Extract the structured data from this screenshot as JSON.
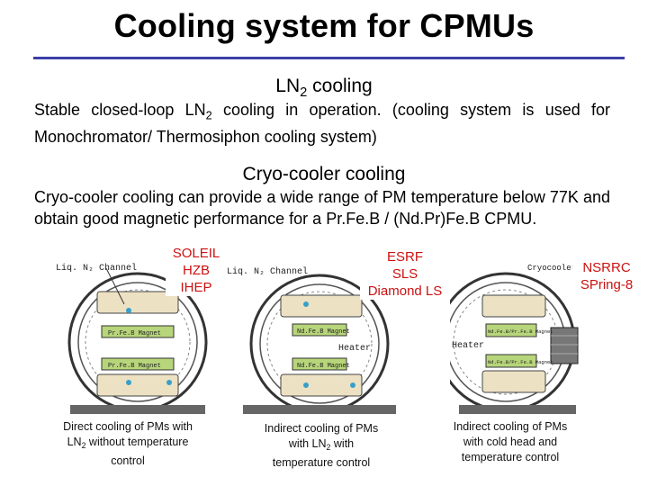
{
  "title": "Cooling system for CPMUs",
  "ln2": {
    "heading_pre": "LN",
    "heading_sub": "2",
    "heading_post": " cooling",
    "text_a": "Stable closed-loop LN",
    "text_sub": "2",
    "text_b": " cooling in operation. (cooling system is used for Monochromator/ Thermosiphon cooling system)"
  },
  "cryo": {
    "heading": "Cryo-cooler cooling",
    "text": "Cryo-cooler cooling can provide a wide range of PM temperature below 77K and obtain good magnetic performance for a Pr.Fe.B / (Nd.Pr)Fe.B CPMU."
  },
  "facilities": {
    "left": [
      "SOLEIL",
      "HZB",
      "IHEP"
    ],
    "middle": [
      "ESRF",
      "SLS",
      "Diamond LS"
    ],
    "right": [
      "NSRRC",
      "SPring-8"
    ]
  },
  "diagrams": {
    "left": {
      "channel": "Liq. N₂ Channel",
      "magnet_top": "Pr.Fe.B Magnet",
      "magnet_bottom": "Pr.Fe.B Magnet"
    },
    "middle": {
      "channel": "Liq. N₂ Channel",
      "magnet_top": "Nd.Fe.B Magnet",
      "magnet_bottom": "Nd.Fe.B Magnet",
      "heater": "Heater"
    },
    "right": {
      "channel": "Cryocooler",
      "magnet_top": "Nd.Fe.B/Pr.Fe.B Magnet",
      "magnet_bottom": "Nd.Fe.B/Pr.Fe.B Magnet",
      "heater": "Heater"
    }
  },
  "captions": {
    "left": {
      "l1": "Direct cooling of PMs with",
      "l2a": "LN",
      "l2sub": "2",
      "l2b": " without temperature",
      "l3": "control"
    },
    "middle": {
      "l1": "Indirect cooling of PMs",
      "l2a": "with LN",
      "l2sub": "2",
      "l2b": " with",
      "l3": "temperature control"
    },
    "right": {
      "l1": "Indirect cooling of PMs",
      "l2": "with cold head and",
      "l3": "temperature control"
    }
  }
}
